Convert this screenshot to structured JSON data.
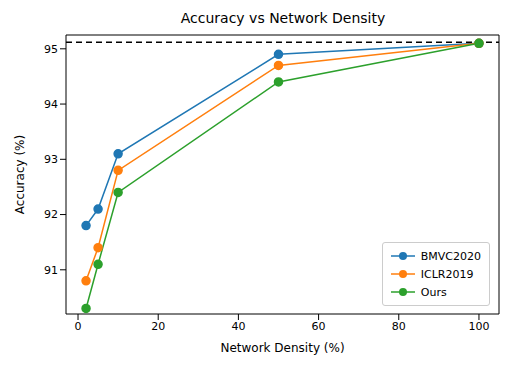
{
  "chart_data": {
    "type": "line",
    "title": "Accuracy vs Network Density",
    "x_label": "Network Density (%)",
    "y_label": "Accuracy (%)",
    "x": [
      2,
      5,
      10,
      50,
      100
    ],
    "series": [
      {
        "name": "BMVC2020",
        "color": "#1f77b4",
        "marker": "circle",
        "values": [
          91.8,
          92.1,
          93.1,
          94.9,
          95.1
        ]
      },
      {
        "name": "ICLR2019",
        "color": "#ff7f0e",
        "marker": "circle",
        "values": [
          90.8,
          91.4,
          92.8,
          94.7,
          95.1
        ]
      },
      {
        "name": "Ours",
        "color": "#2ca02c",
        "marker": "circle",
        "values": [
          90.3,
          91.1,
          92.4,
          94.4,
          95.1
        ]
      }
    ],
    "xlim": [
      -3,
      105
    ],
    "xticks": [
      0,
      20,
      40,
      60,
      80,
      100
    ],
    "ylim": [
      90.2,
      95.25
    ],
    "yticks": [
      91,
      92,
      93,
      94,
      95
    ],
    "reference_line": {
      "value": 95.12,
      "color": "#000000",
      "line_style": "dashed"
    },
    "legend": "lower right",
    "grid": false
  }
}
